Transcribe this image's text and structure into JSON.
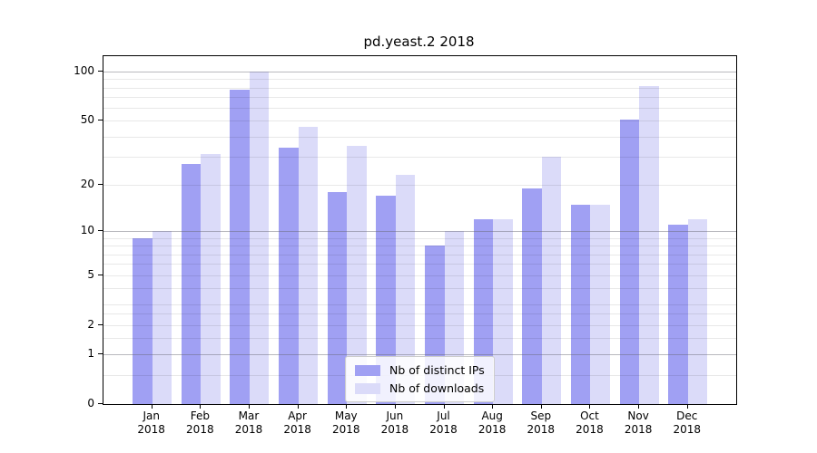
{
  "title": "pd.yeast.2 2018",
  "chart_data": {
    "type": "bar",
    "title": "pd.yeast.2 2018",
    "categories": [
      "Jan 2018",
      "Feb 2018",
      "Mar 2018",
      "Apr 2018",
      "May 2018",
      "Jun 2018",
      "Jul 2018",
      "Aug 2018",
      "Sep 2018",
      "Oct 2018",
      "Nov 2018",
      "Dec 2018"
    ],
    "series": [
      {
        "name": "Nb of distinct IPs",
        "color": "#a0a0f3",
        "values": [
          9,
          27,
          78,
          34,
          18,
          17,
          8,
          12,
          19,
          15,
          51,
          11
        ]
      },
      {
        "name": "Nb of downloads",
        "color": "#dbdbf9",
        "values": [
          10,
          31,
          100,
          46,
          35,
          23,
          10,
          12,
          30,
          15,
          82,
          12
        ]
      }
    ],
    "xlabel": "",
    "ylabel": "",
    "yscale": "log1p",
    "ylim": [
      0,
      125
    ],
    "ytick_labels": [
      100,
      50,
      20,
      10,
      5,
      2,
      1,
      0
    ],
    "grid_major_values": [
      1,
      10,
      100
    ],
    "grid_minor_values": [
      0.5,
      1.5,
      2,
      2.5,
      3,
      4,
      5,
      6,
      7,
      8,
      9,
      20,
      30,
      40,
      50,
      60,
      70,
      80,
      90
    ],
    "legend_position": "lower center inside",
    "legend_entries": [
      "Nb of distinct IPs",
      "Nb of downloads"
    ]
  }
}
